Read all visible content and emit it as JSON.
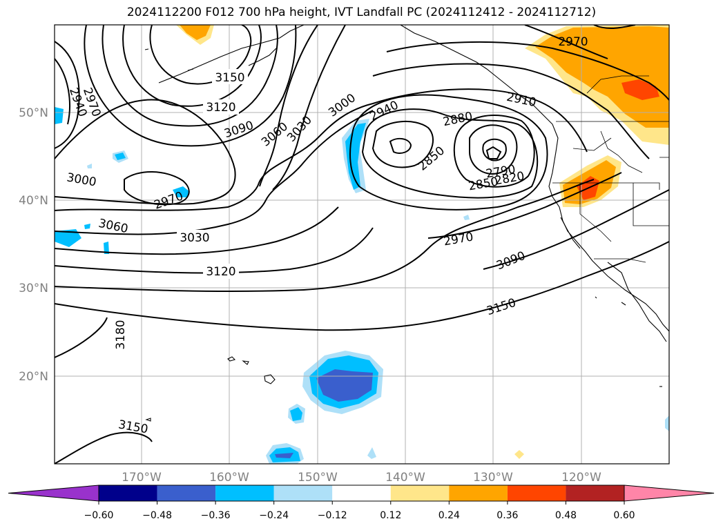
{
  "title": "2024112200 F012 700 hPa height, IVT Landfall PC (2024112412 - 2024112712)",
  "lat_labels": [
    "50°N",
    "40°N",
    "30°N",
    "20°N"
  ],
  "lon_labels": [
    "170°W",
    "160°W",
    "150°W",
    "140°W",
    "130°W",
    "120°W"
  ],
  "contour_labels": [
    "3150",
    "3120",
    "3090",
    "3060",
    "3030",
    "3000",
    "2940",
    "2880",
    "2850",
    "2790",
    "2820",
    "2850",
    "2910",
    "2970",
    "3000",
    "2970",
    "3060",
    "3030",
    "3120",
    "2970",
    "3090",
    "3150",
    "3180",
    "3150",
    "2970",
    "2940"
  ],
  "colorbar": {
    "ticks": [
      "−0.60",
      "−0.48",
      "−0.36",
      "−0.24",
      "−0.12",
      "0.12",
      "0.24",
      "0.36",
      "0.48",
      "0.60"
    ],
    "colors": [
      "#9932cc",
      "#00008b",
      "#3a5fcd",
      "#00bfff",
      "#aee0f8",
      "#ffffff",
      "#ffe68a",
      "#ffa500",
      "#ff4500",
      "#b22222",
      "#ff85a8"
    ]
  },
  "map_data": {
    "projection": "PlateCarree",
    "lon_range": [
      -180,
      -110
    ],
    "lat_range": [
      10,
      60
    ],
    "gridlines": true,
    "contour_variable": "700 hPa height",
    "shading_variable": "IVT Landfall PC"
  }
}
